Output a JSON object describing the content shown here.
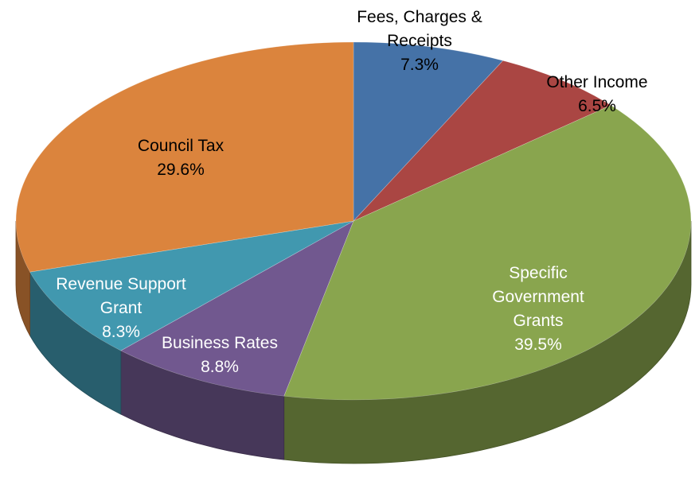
{
  "chart_data": {
    "type": "pie",
    "style": "3d",
    "slices": [
      {
        "label": "Fees, Charges & Receipts",
        "label_lines": [
          "Fees, Charges &",
          "Receipts"
        ],
        "value": 7.3,
        "value_label": "7.3%",
        "color": "#4572A7",
        "label_color": "#000000"
      },
      {
        "label": "Other Income",
        "label_lines": [
          "Other Income"
        ],
        "value": 6.5,
        "value_label": "6.5%",
        "color": "#AA4643",
        "label_color": "#000000"
      },
      {
        "label": "Specific Government Grants",
        "label_lines": [
          "Specific",
          "Government",
          "Grants"
        ],
        "value": 39.5,
        "value_label": "39.5%",
        "color": "#89A54E",
        "label_color": "#ffffff"
      },
      {
        "label": "Business Rates",
        "label_lines": [
          "Business Rates"
        ],
        "value": 8.8,
        "value_label": "8.8%",
        "color": "#71588F",
        "label_color": "#ffffff"
      },
      {
        "label": "Revenue Support Grant",
        "label_lines": [
          "Revenue Support",
          "Grant"
        ],
        "value": 8.3,
        "value_label": "8.3%",
        "color": "#4198AF",
        "label_color": "#ffffff"
      },
      {
        "label": "Council Tax",
        "label_lines": [
          "Council Tax"
        ],
        "value": 29.6,
        "value_label": "29.6%",
        "color": "#DB843D",
        "label_color": "#000000"
      }
    ]
  }
}
